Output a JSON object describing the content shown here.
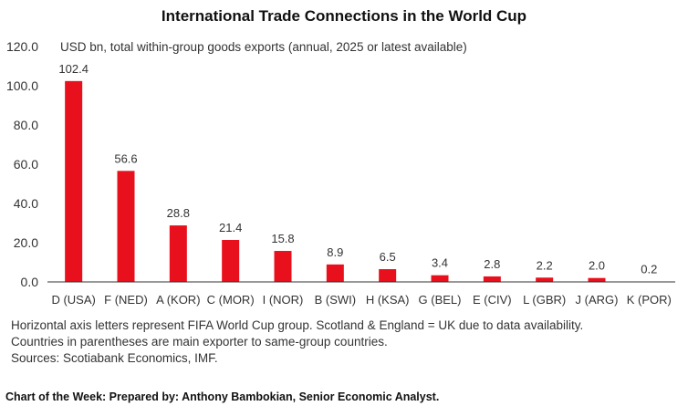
{
  "title": "International Trade Connections in the World Cup",
  "chart_data": {
    "type": "bar",
    "ylabel": "USD bn, total within-group goods exports (annual, 2025 or latest available)",
    "ylim": [
      0,
      120
    ],
    "yticks": [
      "0.0",
      "20.0",
      "40.0",
      "60.0",
      "80.0",
      "100.0",
      "120.0"
    ],
    "ytick_values": [
      0,
      20,
      40,
      60,
      80,
      100,
      120
    ],
    "categories": [
      "D (USA)",
      "F (NED)",
      "A (KOR)",
      "C (MOR)",
      "I (NOR)",
      "B (SWI)",
      "H (KSA)",
      "G (BEL)",
      "E (CIV)",
      "L (GBR)",
      "J (ARG)",
      "K (POR)"
    ],
    "values": [
      102.4,
      56.6,
      28.8,
      21.4,
      15.8,
      8.9,
      6.5,
      3.4,
      2.8,
      2.2,
      2.0,
      0.2
    ],
    "value_labels": [
      "102.4",
      "56.6",
      "28.8",
      "21.4",
      "15.8",
      "8.9",
      "6.5",
      "3.4",
      "2.8",
      "2.2",
      "2.0",
      "0.2"
    ],
    "bar_color": "#e8101c",
    "grid": false
  },
  "notes": [
    "Horizontal axis letters represent FIFA World Cup group. Scotland & England = UK due to data availability.",
    "Countries in parentheses are main exporter to same-group countries.",
    "Sources: Scotiabank Economics, IMF."
  ],
  "footer": "Chart of the Week:  Prepared by: Anthony Bambokian, Senior Economic Analyst."
}
